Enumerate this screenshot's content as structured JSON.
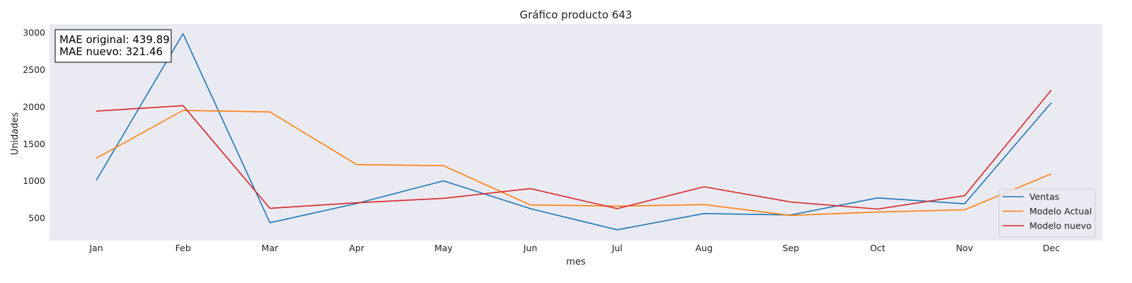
{
  "chart_data": {
    "type": "line",
    "title": "Gráfico producto 643",
    "xlabel": "mes",
    "ylabel": "Unidades",
    "categories": [
      "Jan",
      "Feb",
      "Mar",
      "Apr",
      "May",
      "Jun",
      "Jul",
      "Aug",
      "Sep",
      "Oct",
      "Nov",
      "Dec"
    ],
    "yticks": [
      500,
      1000,
      1500,
      2000,
      2500,
      3000
    ],
    "ylim": [
      200,
      3120
    ],
    "grid": false,
    "legend_position": "bottom-right",
    "series": [
      {
        "name": "Ventas",
        "color": "#1f77b4",
        "values": [
          1010,
          2990,
          440,
          700,
          1005,
          630,
          345,
          565,
          545,
          775,
          695,
          2060
        ]
      },
      {
        "name": "Modelo Actual",
        "color": "#ff7f0e",
        "values": [
          1310,
          1955,
          1935,
          1225,
          1210,
          680,
          665,
          685,
          540,
          585,
          615,
          1100
        ]
      },
      {
        "name": "Modelo nuevo",
        "color": "#d62728",
        "values": [
          1945,
          2020,
          635,
          710,
          770,
          900,
          630,
          925,
          720,
          625,
          805,
          2230
        ]
      }
    ],
    "annotation": {
      "lines": [
        "MAE original: 439.89",
        "MAE nuevo: 321.46"
      ]
    },
    "colors": {
      "plot_background": "#eaeaf2",
      "page_background": "#ffffff"
    }
  }
}
